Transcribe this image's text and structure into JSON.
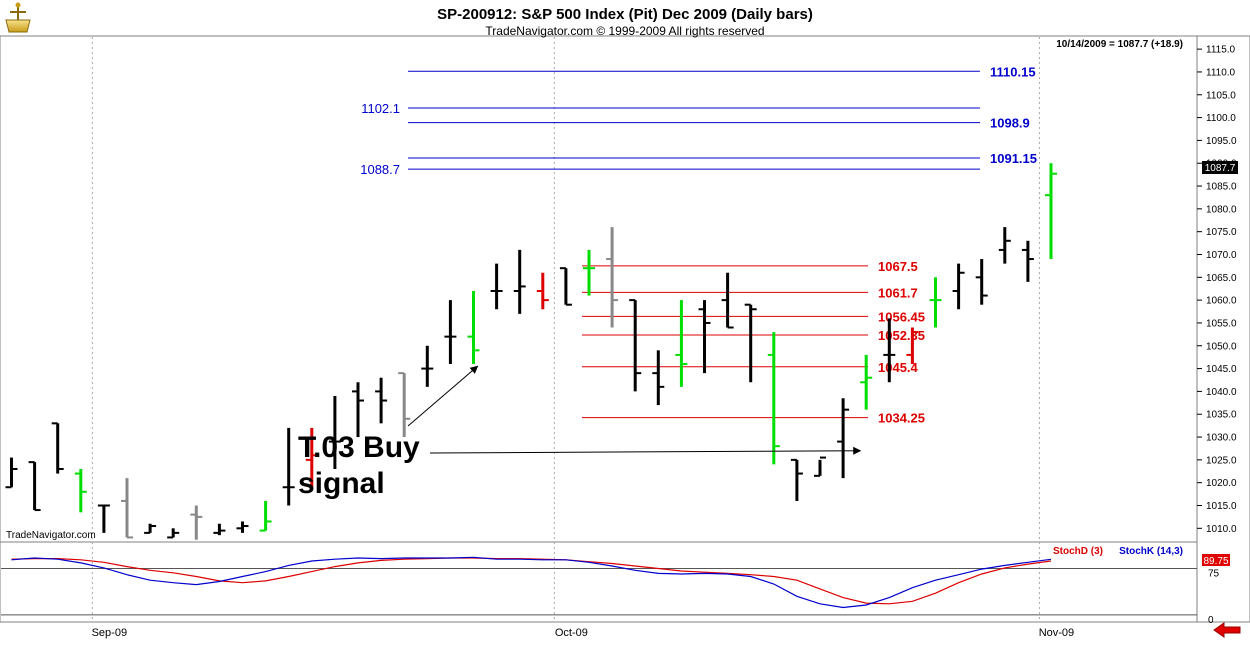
{
  "header": {
    "title": "SP-200912:  S&P 500 Index (Pit) Dec 2009  (Daily bars)",
    "subtitle": "TradeNavigator.com © 1999-2009 All rights reserved",
    "last_info": "10/14/2009 = 1087.7 (+18.9)",
    "price_tag": "1087.7",
    "watermark": "TradeNavigator.com"
  },
  "colors": {
    "accent_blue": "#0000cc",
    "accent_red": "#dd0000",
    "up_bar": "#00dd00",
    "down_bar": "#dd0000",
    "neutral_bar": "#888888",
    "stoch_k": "#0000cc",
    "stoch_d": "#dd0000"
  },
  "chart_data": [
    {
      "type": "ohlc",
      "title": "SP-200912:  S&P 500 Index (Pit) Dec 2009  (Daily bars)",
      "ylim": [
        1007,
        1117
      ],
      "y_ticks": [
        "1010.0",
        "1015.0",
        "1020.0",
        "1025.0",
        "1030.0",
        "1035.0",
        "1040.0",
        "1045.0",
        "1050.0",
        "1055.0",
        "1060.0",
        "1065.0",
        "1070.0",
        "1075.0",
        "1080.0",
        "1085.0",
        "1090.0",
        "1095.0",
        "1100.0",
        "1105.0",
        "1110.0",
        "1115.0"
      ],
      "x_labels": [
        {
          "label": "Sep-09",
          "index": 3.5
        },
        {
          "label": "Oct-09",
          "index": 23.5
        },
        {
          "label": "Nov-09",
          "index": 44.5
        }
      ],
      "bars": [
        {
          "open": 1019,
          "high": 1025.5,
          "low": 1019,
          "close": 1023,
          "color": "black"
        },
        {
          "open": 1024.5,
          "high": 1024.5,
          "low": 1014,
          "close": 1014,
          "color": "black"
        },
        {
          "open": 1033,
          "high": 1033,
          "low": 1022,
          "close": 1023,
          "color": "black"
        },
        {
          "open": 1022,
          "high": 1023,
          "low": 1013.5,
          "close": 1018,
          "color": "green"
        },
        {
          "open": 1015,
          "high": 1015,
          "low": 1009,
          "close": 1015,
          "color": "black"
        },
        {
          "open": 1016,
          "high": 1021,
          "low": 1008,
          "close": 1008,
          "color": "gray"
        },
        {
          "open": 1009,
          "high": 1011,
          "low": 1009,
          "close": 1010.5,
          "color": "black"
        },
        {
          "open": 1008,
          "high": 1010,
          "low": 1008,
          "close": 1009,
          "color": "black"
        },
        {
          "open": 1013,
          "high": 1015,
          "low": 1007.5,
          "close": 1012.5,
          "color": "gray"
        },
        {
          "open": 1009,
          "high": 1011,
          "low": 1008.5,
          "close": 1009.5,
          "color": "black"
        },
        {
          "open": 1010,
          "high": 1011.5,
          "low": 1009,
          "close": 1010.5,
          "color": "black"
        },
        {
          "open": 1009.5,
          "high": 1016,
          "low": 1009.5,
          "close": 1011.5,
          "color": "green"
        },
        {
          "open": 1019,
          "high": 1032,
          "low": 1015,
          "close": 1019,
          "color": "black"
        },
        {
          "open": 1025,
          "high": 1032,
          "low": 1019,
          "close": 1026,
          "color": "red"
        },
        {
          "open": 1029,
          "high": 1039,
          "low": 1023,
          "close": 1029,
          "color": "black"
        },
        {
          "open": 1040,
          "high": 1042,
          "low": 1030,
          "close": 1038,
          "color": "black"
        },
        {
          "open": 1040,
          "high": 1043,
          "low": 1033,
          "close": 1038,
          "color": "black"
        },
        {
          "open": 1044,
          "high": 1044,
          "low": 1030,
          "close": 1034,
          "color": "gray"
        },
        {
          "open": 1045,
          "high": 1050,
          "low": 1041,
          "close": 1045,
          "color": "black"
        },
        {
          "open": 1052,
          "high": 1060,
          "low": 1046,
          "close": 1052,
          "color": "black"
        },
        {
          "open": 1052,
          "high": 1062,
          "low": 1046,
          "close": 1049,
          "color": "green"
        },
        {
          "open": 1062,
          "high": 1068,
          "low": 1058,
          "close": 1062,
          "color": "black"
        },
        {
          "open": 1062,
          "high": 1071,
          "low": 1057,
          "close": 1063,
          "color": "black"
        },
        {
          "open": 1062,
          "high": 1066,
          "low": 1058,
          "close": 1060,
          "color": "red"
        },
        {
          "open": 1067,
          "high": 1067,
          "low": 1059,
          "close": 1059,
          "color": "black"
        },
        {
          "open": 1067,
          "high": 1071,
          "low": 1061,
          "close": 1067,
          "color": "green"
        },
        {
          "open": 1069,
          "high": 1076,
          "low": 1054,
          "close": 1060,
          "color": "gray"
        },
        {
          "open": 1060,
          "high": 1060,
          "low": 1040,
          "close": 1044,
          "color": "black"
        },
        {
          "open": 1044,
          "high": 1049,
          "low": 1037,
          "close": 1041,
          "color": "black"
        },
        {
          "open": 1048,
          "high": 1060,
          "low": 1041,
          "close": 1046,
          "color": "green"
        },
        {
          "open": 1058,
          "high": 1060,
          "low": 1044,
          "close": 1055,
          "color": "black"
        },
        {
          "open": 1060,
          "high": 1066,
          "low": 1054,
          "close": 1054,
          "color": "black"
        },
        {
          "open": 1059,
          "high": 1059,
          "low": 1042,
          "close": 1058,
          "color": "black"
        },
        {
          "open": 1048,
          "high": 1053,
          "low": 1024,
          "close": 1028,
          "color": "green"
        },
        {
          "open": 1025,
          "high": 1025,
          "low": 1016,
          "close": 1022,
          "color": "black"
        },
        {
          "open": 1021.5,
          "high": 1025,
          "low": 1021.5,
          "close": 1025.5,
          "color": "black"
        },
        {
          "open": 1029,
          "high": 1038.5,
          "low": 1021,
          "close": 1036,
          "color": "black"
        },
        {
          "open": 1042,
          "high": 1048,
          "low": 1036,
          "close": 1043,
          "color": "green"
        },
        {
          "open": 1048,
          "high": 1056,
          "low": 1042,
          "close": 1048,
          "color": "black"
        },
        {
          "open": 1048,
          "high": 1054,
          "low": 1046,
          "close": 1053,
          "color": "red"
        },
        {
          "open": 1060,
          "high": 1065,
          "low": 1054,
          "close": 1060,
          "color": "green"
        },
        {
          "open": 1062,
          "high": 1068,
          "low": 1058,
          "close": 1066,
          "color": "black"
        },
        {
          "open": 1065,
          "high": 1069,
          "low": 1059,
          "close": 1061,
          "color": "black"
        },
        {
          "open": 1071,
          "high": 1076,
          "low": 1068,
          "close": 1073,
          "color": "black"
        },
        {
          "open": 1071,
          "high": 1073,
          "low": 1064,
          "close": 1069,
          "color": "black"
        },
        {
          "open": 1083,
          "high": 1090,
          "low": 1069,
          "close": 1087.7,
          "color": "green"
        }
      ],
      "levels": [
        {
          "value": 1110.15,
          "label": "1110.15",
          "side": "right",
          "color": "blue"
        },
        {
          "value": 1102.1,
          "label": "1102.1",
          "side": "left",
          "color": "blue"
        },
        {
          "value": 1098.9,
          "label": "1098.9",
          "side": "right",
          "color": "blue"
        },
        {
          "value": 1091.15,
          "label": "1091.15",
          "side": "right",
          "color": "blue"
        },
        {
          "value": 1088.7,
          "label": "1088.7",
          "side": "left",
          "color": "blue"
        },
        {
          "value": 1067.5,
          "label": "1067.5",
          "side": "right",
          "color": "red"
        },
        {
          "value": 1061.7,
          "label": "1061.7",
          "side": "right",
          "color": "red"
        },
        {
          "value": 1056.45,
          "label": "1056.45",
          "side": "right",
          "color": "red"
        },
        {
          "value": 1052.35,
          "label": "1052.35",
          "side": "right",
          "color": "red"
        },
        {
          "value": 1045.4,
          "label": "1045.4",
          "side": "right",
          "color": "red"
        },
        {
          "value": 1034.25,
          "label": "1034.25",
          "side": "right",
          "color": "red"
        }
      ],
      "annotation": {
        "lines": [
          "T.03 Buy",
          "signal"
        ],
        "targets": [
          {
            "bar": 20,
            "value": 1045.5
          },
          {
            "bar": 37,
            "value": 1027
          }
        ]
      }
    },
    {
      "type": "line",
      "title": "",
      "ylim": [
        -5,
        100
      ],
      "y_ticks": [
        "75",
        "0"
      ],
      "last_value_label": "89.75",
      "series": [
        {
          "name": "StochD (3)",
          "color": "red",
          "values": [
            90,
            91,
            91,
            89,
            85,
            78,
            72,
            68,
            62,
            55,
            52,
            55,
            62,
            70,
            78,
            84,
            88,
            90,
            91,
            92,
            92,
            91,
            91,
            90,
            89,
            86,
            83,
            79,
            75,
            71,
            69,
            67,
            65,
            62,
            56,
            42,
            28,
            19,
            18,
            22,
            35,
            52,
            66,
            76,
            82,
            87
          ]
        },
        {
          "name": "StochK (14,3)",
          "color": "blue",
          "values": [
            89,
            92,
            90,
            84,
            76,
            65,
            56,
            52,
            49,
            54,
            62,
            70,
            80,
            87,
            90,
            92,
            91,
            92,
            92,
            92,
            93,
            90,
            90,
            89,
            89,
            85,
            79,
            72,
            67,
            66,
            67,
            66,
            62,
            50,
            30,
            18,
            12,
            16,
            28,
            44,
            56,
            65,
            74,
            80,
            85,
            89.75
          ]
        }
      ]
    }
  ],
  "bottom_nav": {
    "arrow_icon": "left-arrow-icon"
  }
}
